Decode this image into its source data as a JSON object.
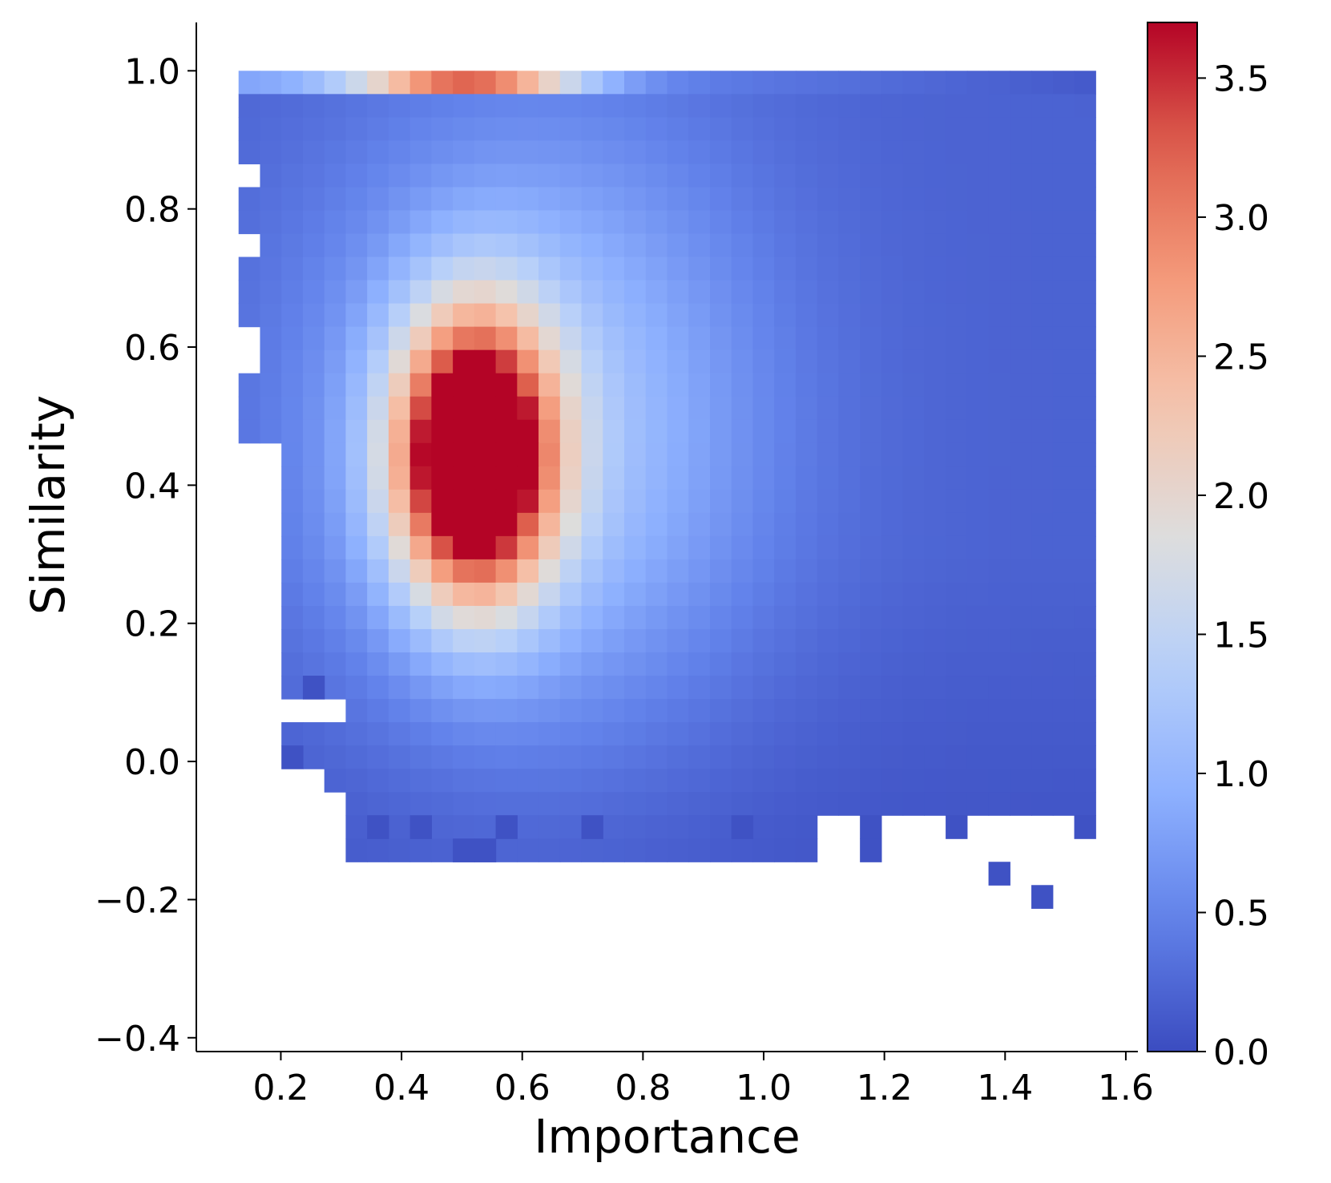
{
  "chart_data": {
    "type": "heatmap",
    "title": "",
    "xlabel": "Importance",
    "ylabel": "Similarity",
    "xlim": [
      0.06,
      1.62
    ],
    "ylim": [
      -0.42,
      1.07
    ],
    "x_ticks": [
      0.2,
      0.4,
      0.6,
      0.8,
      1.0,
      1.2,
      1.4,
      1.6
    ],
    "x_tick_labels": [
      "0.2",
      "0.4",
      "0.6",
      "0.8",
      "1.0",
      "1.2",
      "1.4",
      "1.6"
    ],
    "y_ticks": [
      -0.4,
      -0.2,
      0.0,
      0.2,
      0.4,
      0.6,
      0.8,
      1.0
    ],
    "y_tick_labels": [
      "−0.4",
      "−0.2",
      "0.0",
      "0.2",
      "0.4",
      "0.6",
      "0.8",
      "1.0"
    ],
    "colorbar": {
      "min": 0.0,
      "max": 3.7,
      "ticks": [
        0.0,
        0.5,
        1.0,
        1.5,
        2.0,
        2.5,
        3.0,
        3.5
      ],
      "tick_labels": [
        "0.0",
        "0.5",
        "1.0",
        "1.5",
        "2.0",
        "2.5",
        "3.0",
        "3.5"
      ],
      "colormap": "coolwarm"
    },
    "grid": false,
    "bins": {
      "x_start": 0.13,
      "x_end": 1.55,
      "nx": 40,
      "y_start": -0.28,
      "y_end": 1.0,
      "ny": 38
    },
    "density_model": {
      "peak_center": [
        0.52,
        0.44
      ],
      "peak_spread": [
        0.09,
        0.14
      ],
      "peak_value": 4.3,
      "broad_center": [
        0.62,
        0.48
      ],
      "broad_spread": [
        0.25,
        0.3
      ],
      "broad_value": 1.1,
      "top_row_center": 0.51,
      "top_row_spread": 0.13,
      "top_row_value": 2.6,
      "top_row_base": 0.75
    },
    "empty_bins": [
      [
        0,
        4
      ],
      [
        0,
        7
      ],
      [
        0,
        11
      ],
      [
        0,
        12
      ],
      [
        0,
        18
      ],
      [
        0,
        19
      ],
      [
        0,
        20
      ],
      [
        0,
        21
      ],
      [
        0,
        22
      ],
      [
        0,
        23
      ],
      [
        0,
        24
      ],
      [
        0,
        25
      ],
      [
        0,
        26
      ],
      [
        0,
        27
      ],
      [
        0,
        28
      ],
      [
        0,
        29
      ],
      [
        1,
        26
      ],
      [
        2,
        27
      ],
      [
        3,
        27
      ],
      [
        4,
        27
      ]
    ],
    "extra_bins": [
      [
        2,
        29
      ],
      [
        3,
        26
      ],
      [
        6,
        32
      ],
      [
        8,
        32
      ],
      [
        12,
        32
      ],
      [
        16,
        32
      ],
      [
        23,
        32
      ],
      [
        29,
        32
      ],
      [
        33,
        32
      ],
      [
        39,
        32
      ],
      [
        10,
        33
      ],
      [
        11,
        33
      ],
      [
        29,
        33
      ],
      [
        35,
        34
      ],
      [
        37,
        35
      ]
    ]
  },
  "colors": {
    "axis": "#000000",
    "cold": "#3b4cc0",
    "mid": "#dddddd",
    "hot": "#b40426"
  }
}
